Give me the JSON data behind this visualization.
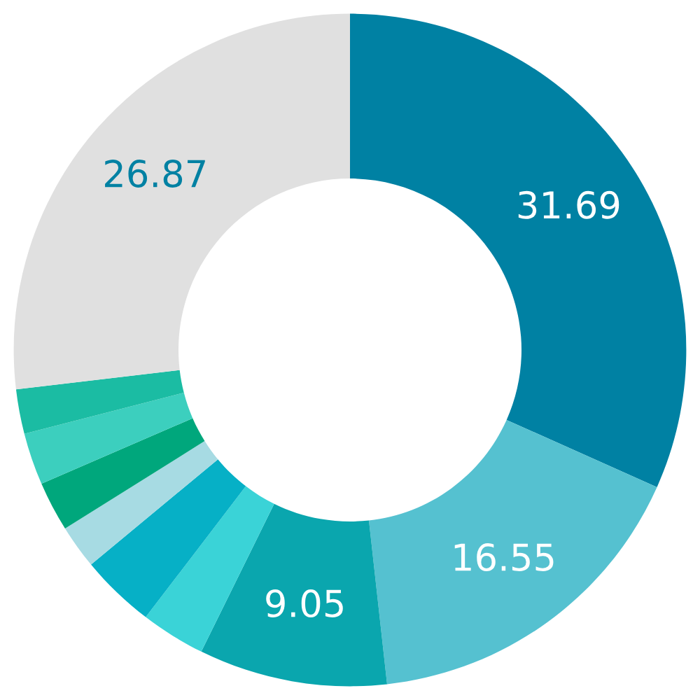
{
  "chart_data": {
    "type": "donut",
    "categories": [
      null,
      null,
      null,
      null,
      null,
      null,
      null,
      null,
      null,
      null
    ],
    "values": [
      31.69,
      16.55,
      9.05,
      3.1,
      3.6,
      2.1,
      2.4,
      2.5,
      2.14,
      26.87
    ],
    "value_labels": [
      "31.69",
      "16.55",
      "9.05",
      null,
      null,
      null,
      null,
      null,
      null,
      "26.87"
    ],
    "colors": [
      "#0081a3",
      "#55c1d0",
      "#0aa6ae",
      "#3ad3d7",
      "#06b0c6",
      "#a7dbe3",
      "#00a77c",
      "#3ccfbe",
      "#1bbca3",
      "#e0e0e0"
    ],
    "legend": false
  }
}
